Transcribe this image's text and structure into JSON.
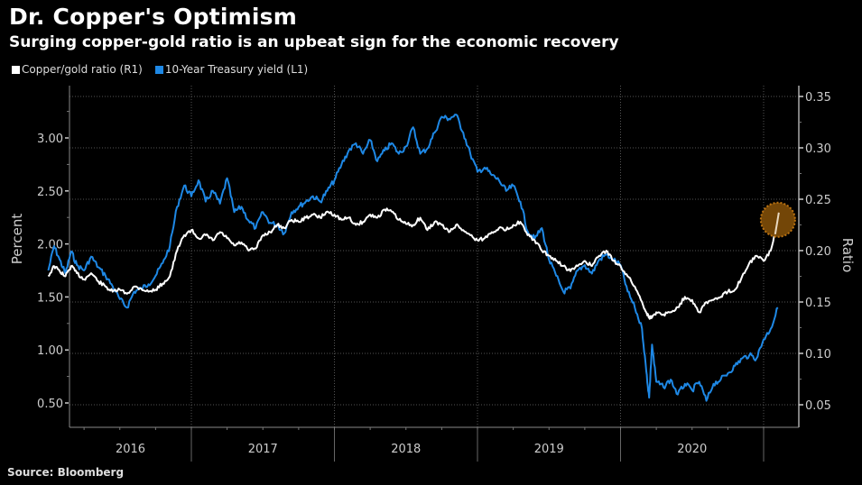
{
  "header": {
    "title": "Dr. Copper's Optimism",
    "subtitle": "Surging copper-gold ratio is an upbeat sign for the economic recovery"
  },
  "legend": [
    {
      "label": "Copper/gold ratio (R1)",
      "color": "#ffffff"
    },
    {
      "label": "10-Year Treasury yield (L1)",
      "color": "#1e88e5"
    }
  ],
  "footer": {
    "source": "Source: Bloomberg"
  },
  "chart_data": {
    "type": "line",
    "title": "Dr. Copper's Optimism",
    "subtitle": "Surging copper-gold ratio is an upbeat sign for the economic recovery",
    "xlabel": "",
    "x_range": [
      2015.95,
      2021.15
    ],
    "x_tick_labels": [
      "2016",
      "2017",
      "2018",
      "2019",
      "2020"
    ],
    "year_boundaries": [
      2017,
      2018,
      2019,
      2020,
      2021
    ],
    "left_axis": {
      "label": "Percent",
      "ticks": [
        "0.50",
        "1.00",
        "1.50",
        "2.00",
        "2.50",
        "3.00"
      ],
      "range": [
        0.3,
        3.45
      ]
    },
    "right_axis": {
      "label": "Ratio",
      "ticks": [
        "0.05",
        "0.10",
        "0.15",
        "0.20",
        "0.25",
        "0.30",
        "0.35"
      ],
      "range": [
        0.04,
        0.36
      ]
    },
    "grid": true,
    "legend_position": "top-left",
    "annotation": {
      "type": "highlight-circle",
      "series": "Copper/gold ratio (R1)",
      "x": 2021.1,
      "y": 0.23,
      "color": "#c77a12"
    },
    "series": [
      {
        "name": "10-Year Treasury yield (L1)",
        "axis": "left",
        "color": "#1e88e5",
        "x": [
          2016.0,
          2016.04,
          2016.08,
          2016.12,
          2016.16,
          2016.2,
          2016.25,
          2016.3,
          2016.35,
          2016.4,
          2016.45,
          2016.5,
          2016.55,
          2016.6,
          2016.65,
          2016.7,
          2016.75,
          2016.8,
          2016.85,
          2016.9,
          2016.95,
          2017.0,
          2017.05,
          2017.1,
          2017.15,
          2017.2,
          2017.25,
          2017.3,
          2017.35,
          2017.4,
          2017.45,
          2017.5,
          2017.55,
          2017.6,
          2017.65,
          2017.7,
          2017.75,
          2017.8,
          2017.85,
          2017.9,
          2017.95,
          2018.0,
          2018.05,
          2018.1,
          2018.15,
          2018.2,
          2018.25,
          2018.3,
          2018.35,
          2018.4,
          2018.45,
          2018.5,
          2018.55,
          2018.6,
          2018.65,
          2018.7,
          2018.75,
          2018.8,
          2018.85,
          2018.9,
          2018.95,
          2019.0,
          2019.05,
          2019.1,
          2019.15,
          2019.2,
          2019.25,
          2019.3,
          2019.35,
          2019.4,
          2019.45,
          2019.5,
          2019.55,
          2019.6,
          2019.65,
          2019.7,
          2019.75,
          2019.8,
          2019.85,
          2019.9,
          2019.95,
          2020.0,
          2020.05,
          2020.1,
          2020.15,
          2020.18,
          2020.2,
          2020.22,
          2020.25,
          2020.3,
          2020.35,
          2020.4,
          2020.45,
          2020.5,
          2020.55,
          2020.6,
          2020.65,
          2020.7,
          2020.75,
          2020.8,
          2020.85,
          2020.9,
          2020.95,
          2021.0,
          2021.05,
          2021.1
        ],
        "values": [
          1.75,
          1.98,
          1.85,
          1.72,
          1.93,
          1.8,
          1.75,
          1.88,
          1.78,
          1.7,
          1.6,
          1.48,
          1.4,
          1.55,
          1.58,
          1.62,
          1.7,
          1.82,
          1.98,
          2.35,
          2.55,
          2.45,
          2.6,
          2.4,
          2.5,
          2.38,
          2.62,
          2.3,
          2.35,
          2.22,
          2.15,
          2.3,
          2.2,
          2.18,
          2.1,
          2.3,
          2.35,
          2.4,
          2.45,
          2.4,
          2.5,
          2.6,
          2.75,
          2.88,
          2.95,
          2.85,
          2.98,
          2.78,
          2.88,
          2.95,
          2.85,
          2.92,
          3.1,
          2.85,
          2.9,
          3.05,
          3.2,
          3.18,
          3.22,
          3.05,
          2.85,
          2.68,
          2.72,
          2.65,
          2.6,
          2.5,
          2.55,
          2.4,
          2.12,
          2.05,
          2.15,
          1.85,
          1.7,
          1.55,
          1.58,
          1.75,
          1.8,
          1.72,
          1.85,
          1.9,
          1.85,
          1.8,
          1.55,
          1.4,
          1.2,
          0.8,
          0.55,
          1.05,
          0.7,
          0.65,
          0.72,
          0.58,
          0.68,
          0.62,
          0.7,
          0.52,
          0.68,
          0.72,
          0.78,
          0.85,
          0.92,
          0.95,
          0.92,
          1.1,
          1.2,
          1.4
        ]
      },
      {
        "name": "Copper/gold ratio (R1)",
        "axis": "right",
        "color": "#ffffff",
        "x": [
          2016.0,
          2016.04,
          2016.08,
          2016.12,
          2016.16,
          2016.2,
          2016.25,
          2016.3,
          2016.35,
          2016.4,
          2016.45,
          2016.5,
          2016.55,
          2016.6,
          2016.65,
          2016.7,
          2016.75,
          2016.8,
          2016.85,
          2016.9,
          2016.95,
          2017.0,
          2017.05,
          2017.1,
          2017.15,
          2017.2,
          2017.25,
          2017.3,
          2017.35,
          2017.4,
          2017.45,
          2017.5,
          2017.55,
          2017.6,
          2017.65,
          2017.7,
          2017.75,
          2017.8,
          2017.85,
          2017.9,
          2017.95,
          2018.0,
          2018.05,
          2018.1,
          2018.15,
          2018.2,
          2018.25,
          2018.3,
          2018.35,
          2018.4,
          2018.45,
          2018.5,
          2018.55,
          2018.6,
          2018.65,
          2018.7,
          2018.75,
          2018.8,
          2018.85,
          2018.9,
          2018.95,
          2019.0,
          2019.05,
          2019.1,
          2019.15,
          2019.2,
          2019.25,
          2019.3,
          2019.35,
          2019.4,
          2019.45,
          2019.5,
          2019.55,
          2019.6,
          2019.65,
          2019.7,
          2019.75,
          2019.8,
          2019.85,
          2019.9,
          2019.95,
          2020.0,
          2020.05,
          2020.1,
          2020.15,
          2020.18,
          2020.2,
          2020.22,
          2020.25,
          2020.3,
          2020.35,
          2020.4,
          2020.45,
          2020.5,
          2020.55,
          2020.6,
          2020.65,
          2020.7,
          2020.75,
          2020.8,
          2020.85,
          2020.9,
          2020.95,
          2021.0,
          2021.05,
          2021.1
        ],
        "values": [
          0.175,
          0.185,
          0.18,
          0.175,
          0.185,
          0.178,
          0.172,
          0.178,
          0.17,
          0.165,
          0.16,
          0.162,
          0.158,
          0.165,
          0.163,
          0.16,
          0.162,
          0.168,
          0.175,
          0.2,
          0.215,
          0.22,
          0.212,
          0.215,
          0.21,
          0.218,
          0.212,
          0.205,
          0.208,
          0.2,
          0.202,
          0.215,
          0.218,
          0.225,
          0.222,
          0.23,
          0.228,
          0.232,
          0.235,
          0.232,
          0.238,
          0.235,
          0.23,
          0.232,
          0.225,
          0.228,
          0.235,
          0.232,
          0.24,
          0.238,
          0.23,
          0.226,
          0.225,
          0.232,
          0.22,
          0.228,
          0.225,
          0.218,
          0.225,
          0.22,
          0.215,
          0.21,
          0.212,
          0.218,
          0.222,
          0.22,
          0.225,
          0.228,
          0.215,
          0.21,
          0.2,
          0.195,
          0.19,
          0.185,
          0.18,
          0.185,
          0.19,
          0.185,
          0.195,
          0.2,
          0.19,
          0.185,
          0.175,
          0.165,
          0.15,
          0.14,
          0.135,
          0.135,
          0.14,
          0.138,
          0.14,
          0.145,
          0.155,
          0.152,
          0.14,
          0.15,
          0.152,
          0.155,
          0.16,
          0.162,
          0.175,
          0.188,
          0.195,
          0.19,
          0.2,
          0.23
        ]
      }
    ]
  }
}
